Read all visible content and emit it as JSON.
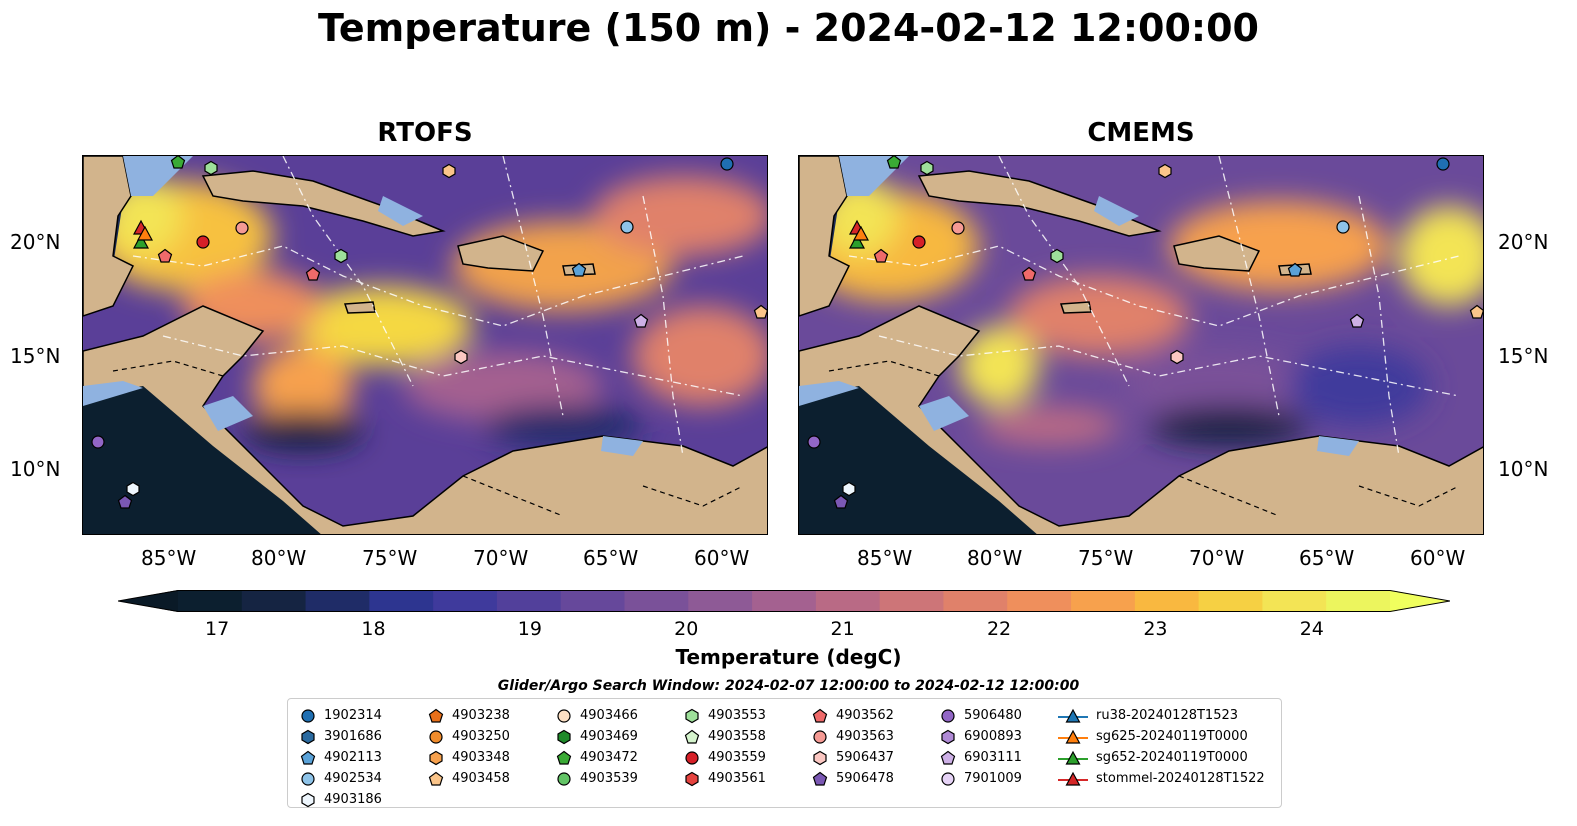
{
  "title": "Temperature (150 m) - 2024-02-12 12:00:00",
  "panels": [
    {
      "title": "RTOFS"
    },
    {
      "title": "CMEMS"
    }
  ],
  "axes": {
    "lat_labels": [
      "20°N",
      "15°N",
      "10°N"
    ],
    "lon_labels": [
      "85°W",
      "80°W",
      "75°W",
      "70°W",
      "65°W",
      "60°W"
    ]
  },
  "colorbar": {
    "label": "Temperature (degC)",
    "ticks": [
      "17",
      "18",
      "19",
      "20",
      "21",
      "22",
      "23",
      "24"
    ],
    "min": 16.75,
    "max": 24.5,
    "colors": [
      "#0c1f2f",
      "#152442",
      "#1f2c67",
      "#2d3590",
      "#3f3a9c",
      "#52409b",
      "#66489b",
      "#7a5199",
      "#8e5a96",
      "#a46190",
      "#b96a85",
      "#cd7578",
      "#e0816a",
      "#ef8f5c",
      "#f7a14d",
      "#f9b840",
      "#f6d043",
      "#f3e455",
      "#ecf55e"
    ],
    "over_color": "#f0ff5e",
    "under_color": "#0a1a27"
  },
  "search_window": "Glider/Argo Search Window: 2024-02-07 12:00:00 to 2024-02-12 12:00:00",
  "legend": [
    [
      {
        "label": "1902314",
        "shape": "circle",
        "color": "#1f6fb2"
      },
      {
        "label": "3901686",
        "shape": "hexagon",
        "color": "#2a6aa0"
      },
      {
        "label": "4902113",
        "shape": "pentagon",
        "color": "#5aa2d8"
      },
      {
        "label": "4902534",
        "shape": "circle",
        "color": "#8ec3e8"
      },
      {
        "label": "4903186",
        "shape": "hexagon",
        "color": "#eef6fd"
      }
    ],
    [
      {
        "label": "4903238",
        "shape": "pentagon",
        "color": "#e8701a"
      },
      {
        "label": "4903250",
        "shape": "circle",
        "color": "#f08c2c"
      },
      {
        "label": "4903348",
        "shape": "hexagon",
        "color": "#f7a14d"
      },
      {
        "label": "4903458",
        "shape": "pentagon",
        "color": "#fbc58a"
      }
    ],
    [
      {
        "label": "4903466",
        "shape": "circle",
        "color": "#fde0c4"
      },
      {
        "label": "4903469",
        "shape": "hexagon",
        "color": "#1f8a2a"
      },
      {
        "label": "4903472",
        "shape": "pentagon",
        "color": "#3aaa35"
      },
      {
        "label": "4903539",
        "shape": "circle",
        "color": "#63c466"
      }
    ],
    [
      {
        "label": "4903553",
        "shape": "hexagon",
        "color": "#9ee09a"
      },
      {
        "label": "4903558",
        "shape": "pentagon",
        "color": "#d5f4cd"
      },
      {
        "label": "4903559",
        "shape": "circle",
        "color": "#d62028"
      },
      {
        "label": "4903561",
        "shape": "hexagon",
        "color": "#e5433f"
      }
    ],
    [
      {
        "label": "4903562",
        "shape": "pentagon",
        "color": "#ef6a6a"
      },
      {
        "label": "4903563",
        "shape": "circle",
        "color": "#f59a94"
      },
      {
        "label": "5906437",
        "shape": "hexagon",
        "color": "#fbc7c2"
      },
      {
        "label": "5906478",
        "shape": "pentagon",
        "color": "#7b58b4"
      }
    ],
    [
      {
        "label": "5906480",
        "shape": "circle",
        "color": "#9266c6"
      },
      {
        "label": "6900893",
        "shape": "hexagon",
        "color": "#b08ad6"
      },
      {
        "label": "6903111",
        "shape": "pentagon",
        "color": "#cdb0e6"
      },
      {
        "label": "7901009",
        "shape": "circle",
        "color": "#e6d3f6"
      }
    ],
    [
      {
        "label": "ru38-20240128T1523",
        "shape": "triangle-line",
        "color": "#1f77b4"
      },
      {
        "label": "sg625-20240119T0000",
        "shape": "triangle-line",
        "color": "#ff7f0e"
      },
      {
        "label": "sg652-20240119T0000",
        "shape": "triangle-line",
        "color": "#2ca02c"
      },
      {
        "label": "stommel-20240128T1522",
        "shape": "triangle-line",
        "color": "#d62728"
      }
    ]
  ],
  "map_colors": {
    "land": "#d2b48c",
    "shelf": "#8fb2e0",
    "warm_pool": "#f3e455",
    "deep": "#0c1f2f"
  }
}
